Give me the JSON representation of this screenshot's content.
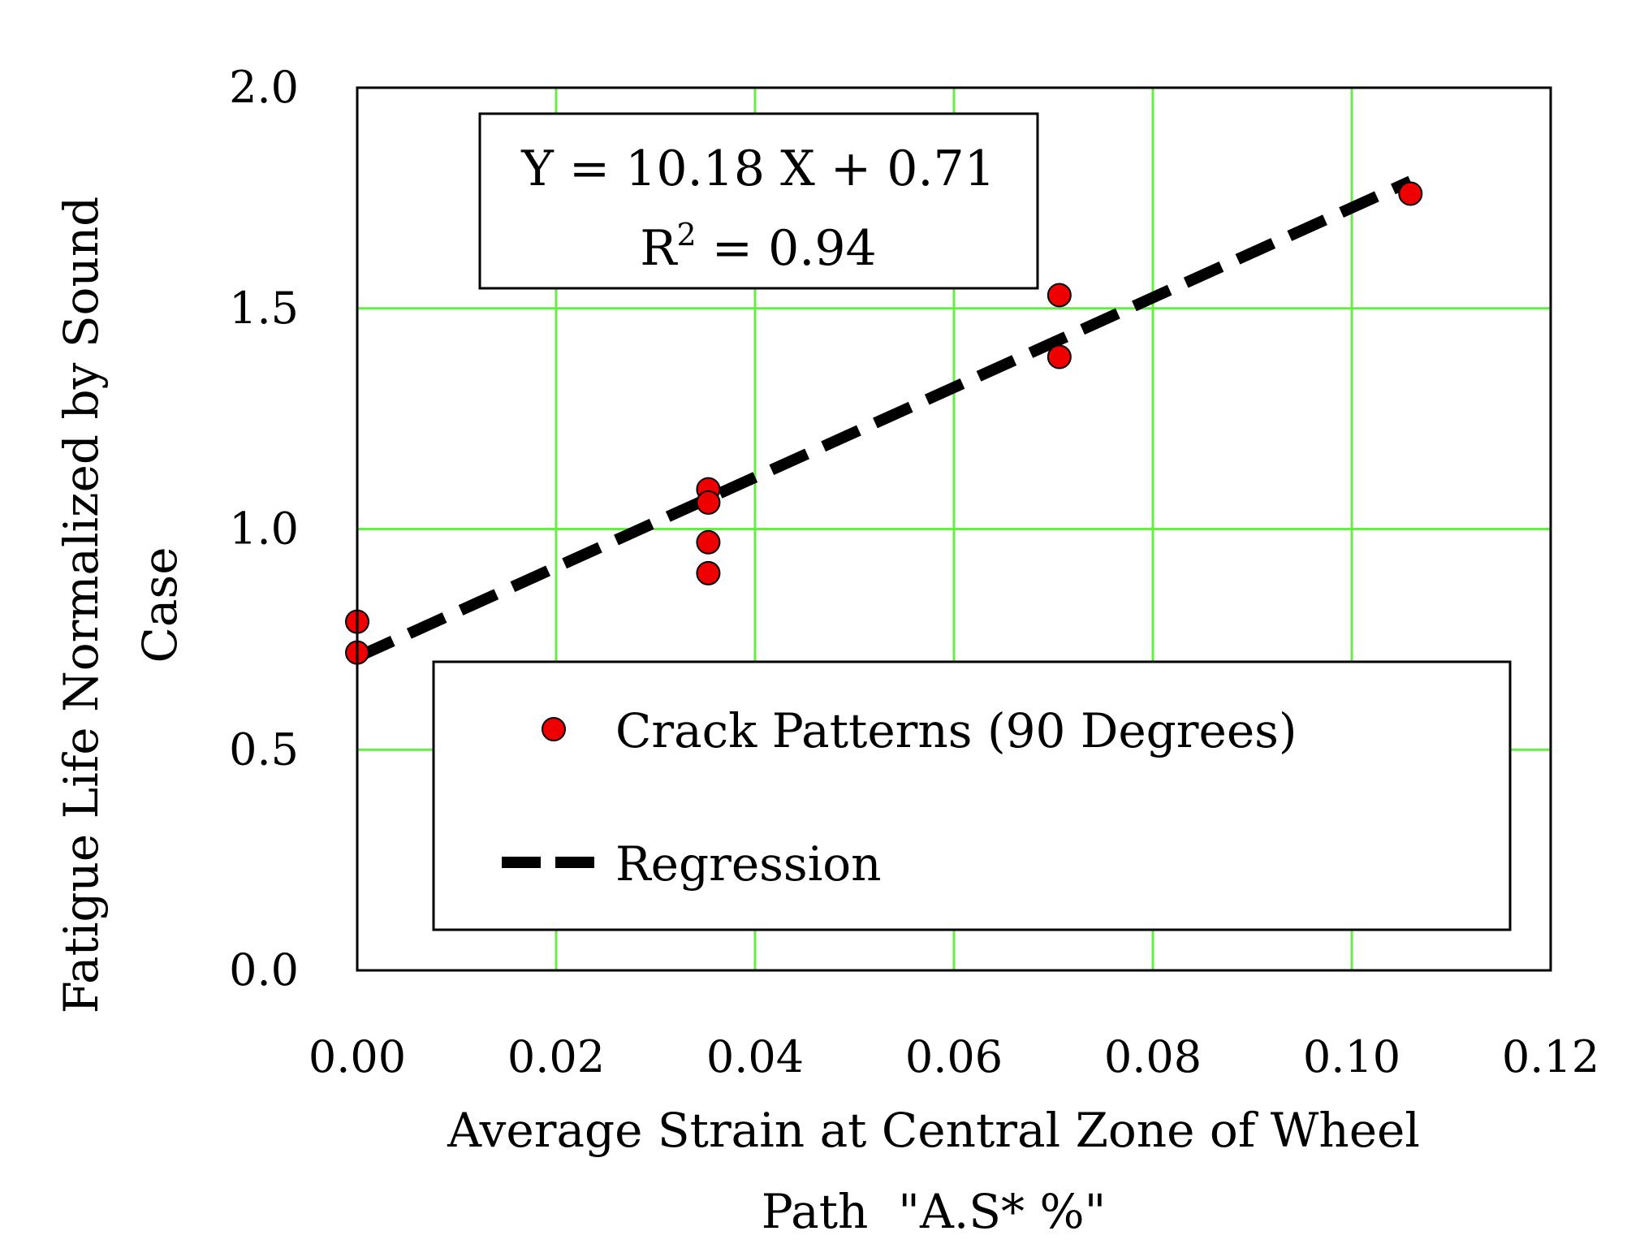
{
  "chart_data": {
    "type": "scatter",
    "title": "",
    "xlabel_lines": [
      "Average Strain at Central Zone of Wheel",
      "Path  \"A.S* %\""
    ],
    "ylabel_lines": [
      "Fatigue Life Normalized by Sound",
      "Case"
    ],
    "xlim": [
      0,
      0.12
    ],
    "ylim": [
      0,
      2.0
    ],
    "x_ticks": [
      0,
      0.02,
      0.04,
      0.06,
      0.08,
      0.1,
      0.12
    ],
    "x_tick_labels": [
      "0.00",
      "0.02",
      "0.04",
      "0.06",
      "0.08",
      "0.10",
      "0.12"
    ],
    "y_ticks": [
      0,
      0.5,
      1.0,
      1.5,
      2.0
    ],
    "y_tick_labels": [
      "0.0",
      "0.5",
      "1.0",
      "1.5",
      "2.0"
    ],
    "grid": true,
    "grid_color": "#66ee44",
    "series": [
      {
        "name": "Crack Patterns (90 Degrees)",
        "kind": "scatter",
        "color": "#ee0000",
        "points": [
          {
            "x": 0.0,
            "y": 0.79
          },
          {
            "x": 0.0,
            "y": 0.72
          },
          {
            "x": 0.0353,
            "y": 1.09
          },
          {
            "x": 0.0353,
            "y": 1.06
          },
          {
            "x": 0.0353,
            "y": 0.97
          },
          {
            "x": 0.0353,
            "y": 0.9
          },
          {
            "x": 0.0706,
            "y": 1.53
          },
          {
            "x": 0.0706,
            "y": 1.39
          },
          {
            "x": 0.1059,
            "y": 1.76
          }
        ]
      },
      {
        "name": "Regression",
        "kind": "line",
        "style": "dashed",
        "color": "#000000",
        "slope": 10.18,
        "intercept": 0.71,
        "x_range": [
          0.0,
          0.1059
        ]
      }
    ],
    "annotation": {
      "equation": "Y = 10.18 X + 0.71",
      "r2_prefix": "R",
      "r2_sup": "2",
      "r2_suffix": " = 0.94"
    },
    "legend": {
      "placement": "bottom-right",
      "entries": [
        "Crack Patterns (90 Degrees)",
        "Regression"
      ]
    }
  }
}
